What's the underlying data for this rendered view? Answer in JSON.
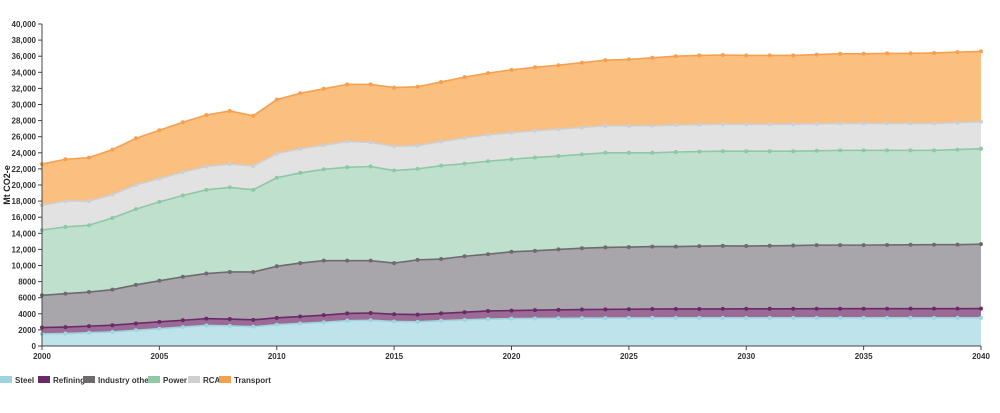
{
  "chart_data": {
    "type": "area",
    "stacked": true,
    "ylabel": "Mt CO2-e",
    "xlabel": "",
    "title": "",
    "ylim": [
      0,
      40000
    ],
    "xlim": [
      2000,
      2040
    ],
    "y_ticks": [
      0,
      2000,
      4000,
      6000,
      8000,
      10000,
      12000,
      14000,
      16000,
      18000,
      20000,
      22000,
      24000,
      26000,
      28000,
      30000,
      32000,
      34000,
      36000,
      38000,
      40000
    ],
    "y_tick_labels": [
      "0",
      "2000",
      "4000",
      "6000",
      "8000",
      "10,000",
      "12,000",
      "14,000",
      "16,000",
      "18,000",
      "20,000",
      "22,000",
      "24,000",
      "26,000",
      "28,000",
      "30,000",
      "32,000",
      "34,000",
      "36,000",
      "38,000",
      "40,000"
    ],
    "x_ticks": [
      2000,
      2005,
      2010,
      2015,
      2020,
      2025,
      2030,
      2035,
      2040
    ],
    "x_tick_labels": [
      "2000",
      "2005",
      "2010",
      "2015",
      "2020",
      "2025",
      "2030",
      "2035",
      "2040"
    ],
    "grid": false,
    "legend_position": "bottom-left",
    "x": [
      2000,
      2001,
      2002,
      2003,
      2004,
      2005,
      2006,
      2007,
      2008,
      2009,
      2010,
      2011,
      2012,
      2013,
      2014,
      2015,
      2016,
      2017,
      2018,
      2019,
      2020,
      2021,
      2022,
      2023,
      2024,
      2025,
      2026,
      2027,
      2028,
      2029,
      2030,
      2031,
      2032,
      2033,
      2034,
      2035,
      2036,
      2037,
      2038,
      2039,
      2040
    ],
    "series": [
      {
        "name": "Steel",
        "color": "#bfe3ea",
        "line_color": "#9fd3dd",
        "values": [
          1500,
          1550,
          1650,
          1750,
          1950,
          2150,
          2350,
          2550,
          2500,
          2400,
          2650,
          2800,
          2950,
          3150,
          3200,
          3050,
          3000,
          3150,
          3250,
          3350,
          3400,
          3420,
          3440,
          3460,
          3470,
          3480,
          3490,
          3500,
          3500,
          3500,
          3500,
          3500,
          3500,
          3500,
          3500,
          3500,
          3500,
          3500,
          3500,
          3500,
          3500
        ]
      },
      {
        "name": "Refining",
        "color": "#9b6b96",
        "line_color": "#6a2a68",
        "values": [
          800,
          800,
          820,
          830,
          850,
          850,
          850,
          850,
          850,
          850,
          850,
          860,
          880,
          900,
          900,
          900,
          900,
          900,
          950,
          1000,
          1000,
          1030,
          1050,
          1070,
          1080,
          1090,
          1100,
          1100,
          1100,
          1110,
          1120,
          1120,
          1120,
          1130,
          1130,
          1130,
          1130,
          1140,
          1140,
          1140,
          1150
        ]
      },
      {
        "name": "Industry other",
        "color": "#a9a6ab",
        "line_color": "#6e6b70",
        "values": [
          4000,
          4150,
          4230,
          4420,
          4800,
          5100,
          5400,
          5600,
          5850,
          5950,
          6400,
          6640,
          6770,
          6550,
          6500,
          6350,
          6800,
          6750,
          6950,
          7050,
          7300,
          7370,
          7510,
          7620,
          7700,
          7720,
          7760,
          7750,
          7800,
          7830,
          7800,
          7830,
          7860,
          7900,
          7900,
          7900,
          7920,
          7930,
          7940,
          7950,
          8000
        ]
      },
      {
        "name": "Power",
        "color": "#bfe0cd",
        "line_color": "#8fc8a6",
        "values": [
          8100,
          8300,
          8300,
          8900,
          9400,
          9800,
          10100,
          10400,
          10500,
          10200,
          11000,
          11200,
          11350,
          11600,
          11700,
          11500,
          11300,
          11600,
          11500,
          11550,
          11500,
          11600,
          11600,
          11650,
          11750,
          11710,
          11650,
          11750,
          11750,
          11760,
          11780,
          11750,
          11720,
          11720,
          11770,
          11770,
          11750,
          11730,
          11720,
          11810,
          11850
        ]
      },
      {
        "name": "RCA",
        "color": "#e2e2e2",
        "line_color": "#cfcfcf",
        "values": [
          3100,
          3200,
          3000,
          2900,
          3000,
          2900,
          2900,
          2900,
          2900,
          2950,
          3000,
          3000,
          3000,
          3200,
          3000,
          3000,
          2900,
          3000,
          3200,
          3300,
          3300,
          3320,
          3330,
          3350,
          3350,
          3350,
          3350,
          3350,
          3350,
          3350,
          3350,
          3350,
          3350,
          3350,
          3350,
          3350,
          3350,
          3350,
          3350,
          3350,
          3350
        ]
      },
      {
        "name": "Transport",
        "color": "#fbbf80",
        "line_color": "#f5a04e",
        "values": [
          5100,
          5200,
          5400,
          5600,
          5800,
          6000,
          6200,
          6400,
          6600,
          6250,
          6700,
          6900,
          7000,
          7100,
          7200,
          7300,
          7300,
          7400,
          7550,
          7650,
          7800,
          7880,
          7950,
          8050,
          8150,
          8250,
          8450,
          8550,
          8600,
          8600,
          8550,
          8550,
          8550,
          8600,
          8650,
          8650,
          8700,
          8700,
          8750,
          8750,
          8750
        ]
      }
    ]
  }
}
